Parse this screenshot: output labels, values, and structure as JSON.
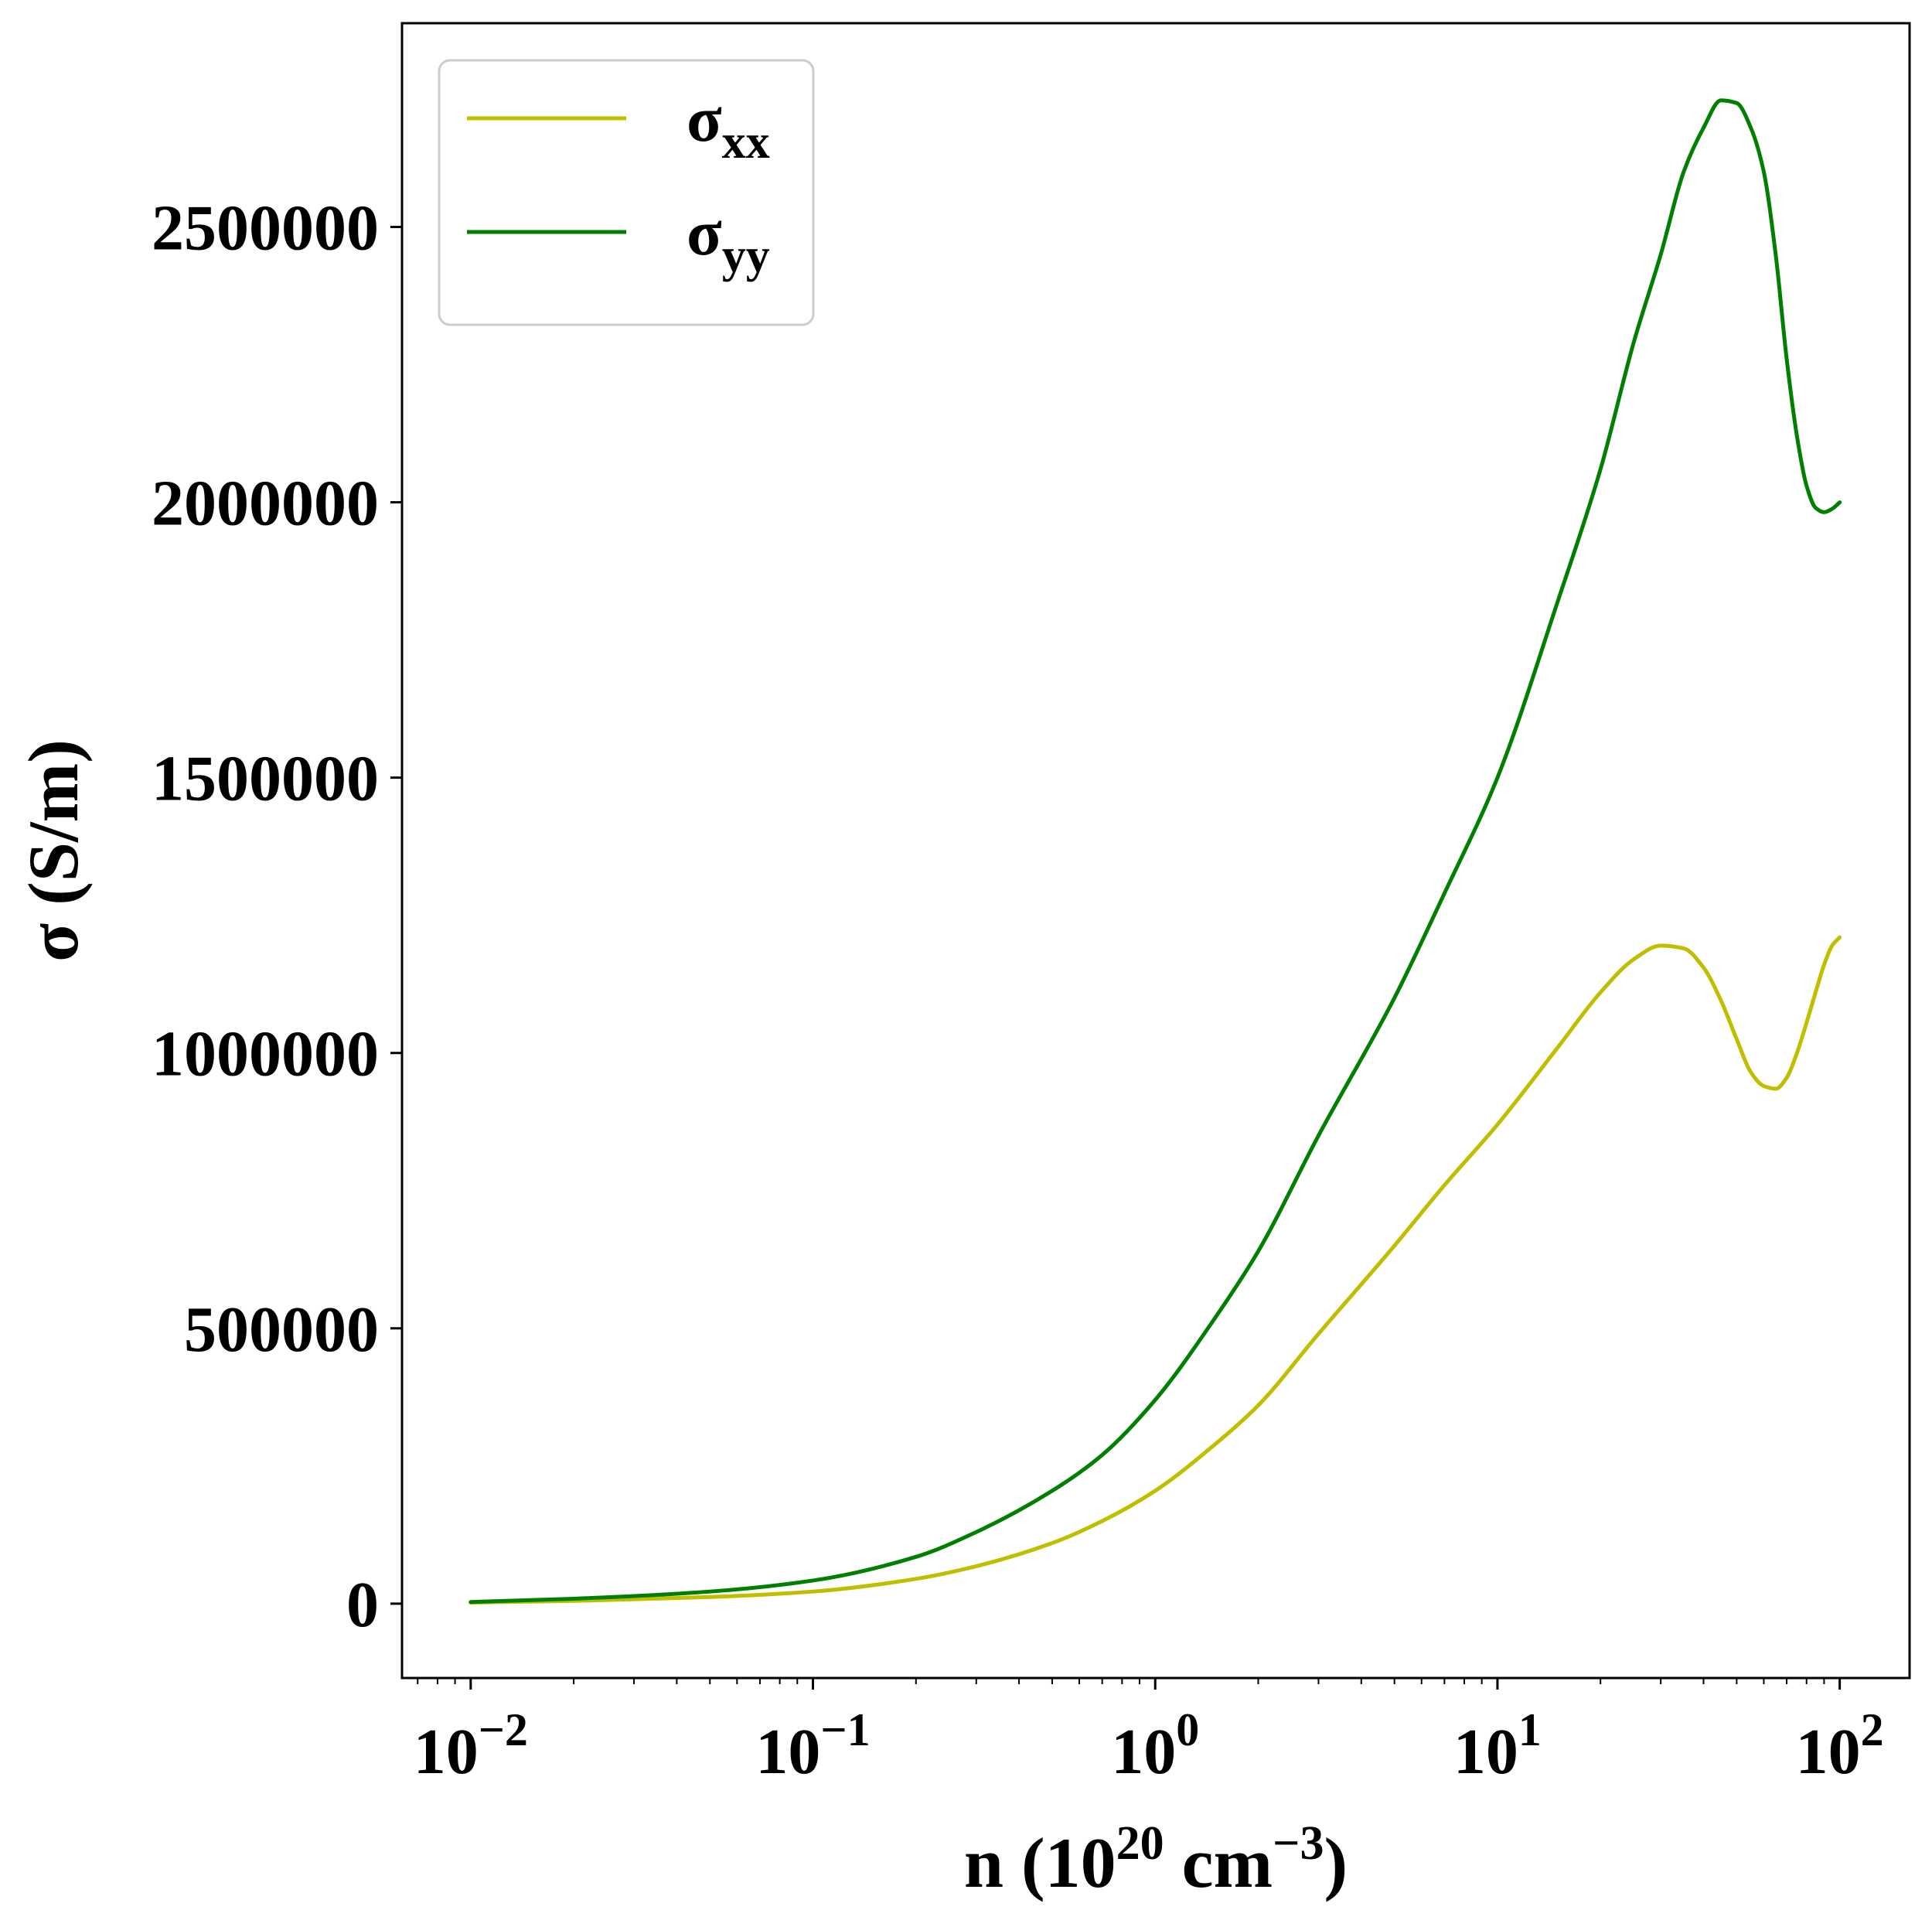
{
  "chart_data": {
    "type": "line",
    "xlabel": {
      "main": "n (10",
      "exp1": "20",
      "mid": " cm",
      "exp2": "−3",
      "tail": ")"
    },
    "ylabel": "σ (S/m)",
    "xscale": "log",
    "xlim": [
      0.0063,
      160
    ],
    "ylim": [
      -135000,
      2870000
    ],
    "x_ticks": [
      {
        "base": "10",
        "exp": "−2",
        "value": 0.01
      },
      {
        "base": "10",
        "exp": "−1",
        "value": 0.1
      },
      {
        "base": "10",
        "exp": "0",
        "value": 1
      },
      {
        "base": "10",
        "exp": "1",
        "value": 10
      },
      {
        "base": "10",
        "exp": "2",
        "value": 100
      }
    ],
    "y_ticks": [
      {
        "label": "0",
        "value": 0
      },
      {
        "label": "500000",
        "value": 500000
      },
      {
        "label": "1000000",
        "value": 1000000
      },
      {
        "label": "1500000",
        "value": 1500000
      },
      {
        "label": "2000000",
        "value": 2000000
      },
      {
        "label": "2500000",
        "value": 2500000
      }
    ],
    "grid": false,
    "legend": "top-left",
    "series": [
      {
        "name": "σ",
        "sub": "xx",
        "color": "#bfbf00",
        "x": [
          0.01,
          0.02,
          0.05,
          0.1,
          0.2,
          0.3,
          0.5,
          0.7,
          1,
          1.5,
          2,
          3,
          5,
          7,
          10,
          15,
          20,
          25,
          30,
          35,
          40,
          45,
          50,
          55,
          60,
          65,
          70,
          75,
          80,
          85,
          90,
          95,
          100
        ],
        "y": [
          2000,
          5000,
          12000,
          22000,
          45000,
          68000,
          110000,
          150000,
          205000,
          290000,
          360000,
          490000,
          650000,
          760000,
          870000,
          1010000,
          1110000,
          1170000,
          1195000,
          1190000,
          1155000,
          1095000,
          1025000,
          965000,
          940000,
          935000,
          955000,
          1000000,
          1055000,
          1110000,
          1160000,
          1195000,
          1210000
        ]
      },
      {
        "name": "σ",
        "sub": "yy",
        "color": "#007f00",
        "x": [
          0.01,
          0.02,
          0.05,
          0.1,
          0.2,
          0.3,
          0.5,
          0.7,
          1,
          1.5,
          2,
          3,
          5,
          7,
          10,
          15,
          20,
          25,
          30,
          35,
          40,
          45,
          50,
          55,
          60,
          65,
          70,
          75,
          80,
          85,
          90,
          95,
          100
        ],
        "y": [
          3000,
          9000,
          22000,
          42000,
          85000,
          130000,
          205000,
          270000,
          370000,
          520000,
          640000,
          850000,
          1100000,
          1290000,
          1500000,
          1820000,
          2060000,
          2290000,
          2450000,
          2600000,
          2680000,
          2730000,
          2725000,
          2680000,
          2600000,
          2450000,
          2260000,
          2120000,
          2030000,
          1990000,
          1982000,
          1988000,
          2000000
        ]
      }
    ]
  }
}
